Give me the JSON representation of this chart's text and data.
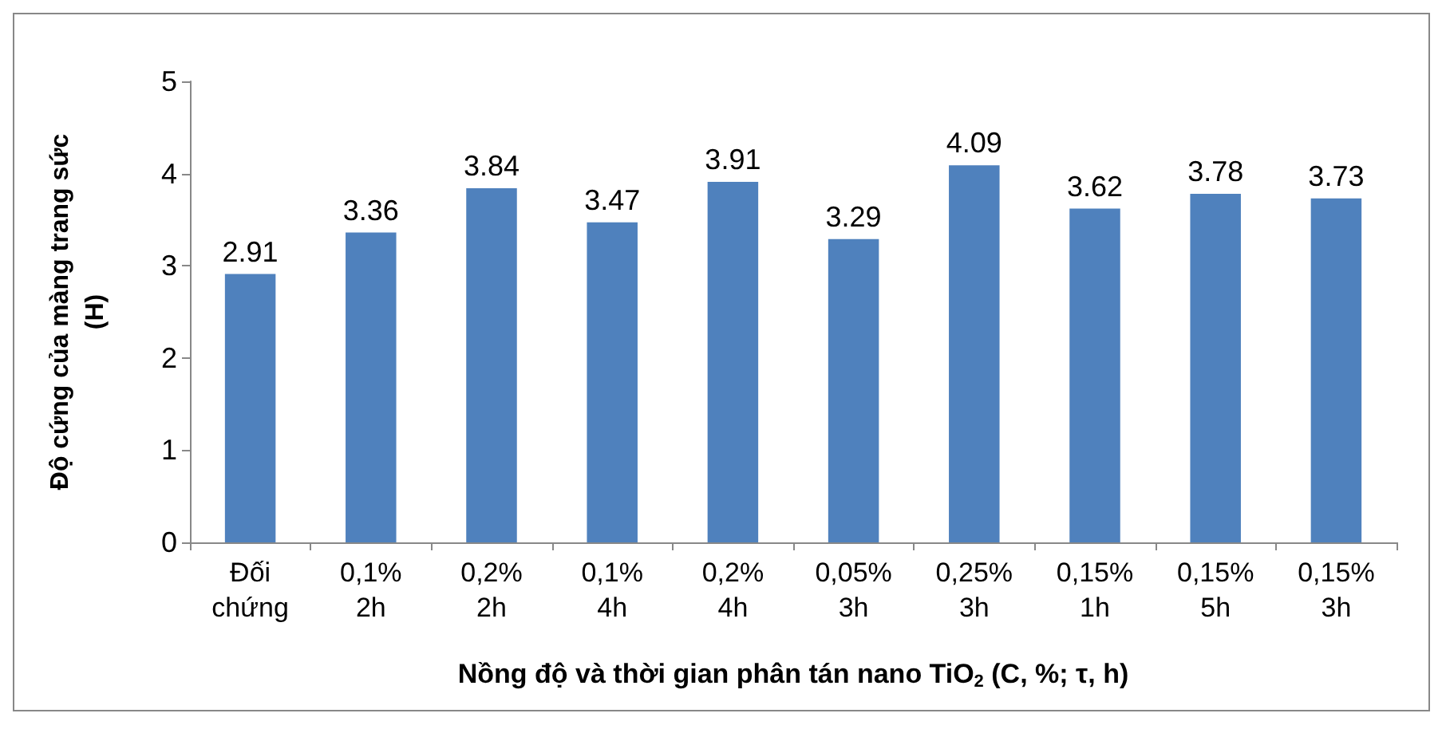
{
  "chart_data": {
    "type": "bar",
    "xlabel": "Nồng độ và thời gian phân tán nano TiO$_{2}$ (C, %; τ, h)",
    "ylabel": "Độ cứng của màng trang sức\n(H)",
    "categories": [
      "Đối\nchứng",
      "0,1%\n2h",
      "0,2%\n2h",
      "0,1%\n4h",
      "0,2%\n4h",
      "0,05%\n3h",
      "0,25%\n3h",
      "0,15%\n1h",
      "0,15%\n5h",
      "0,15%\n3h"
    ],
    "values": [
      2.91,
      3.36,
      3.84,
      3.47,
      3.91,
      3.29,
      4.09,
      3.62,
      3.78,
      3.73
    ],
    "color": "#4f81bd",
    "ylim": [
      0,
      5
    ],
    "yticks": [
      0,
      1,
      2,
      3,
      4,
      5
    ],
    "grid": false,
    "data_labels": true
  }
}
